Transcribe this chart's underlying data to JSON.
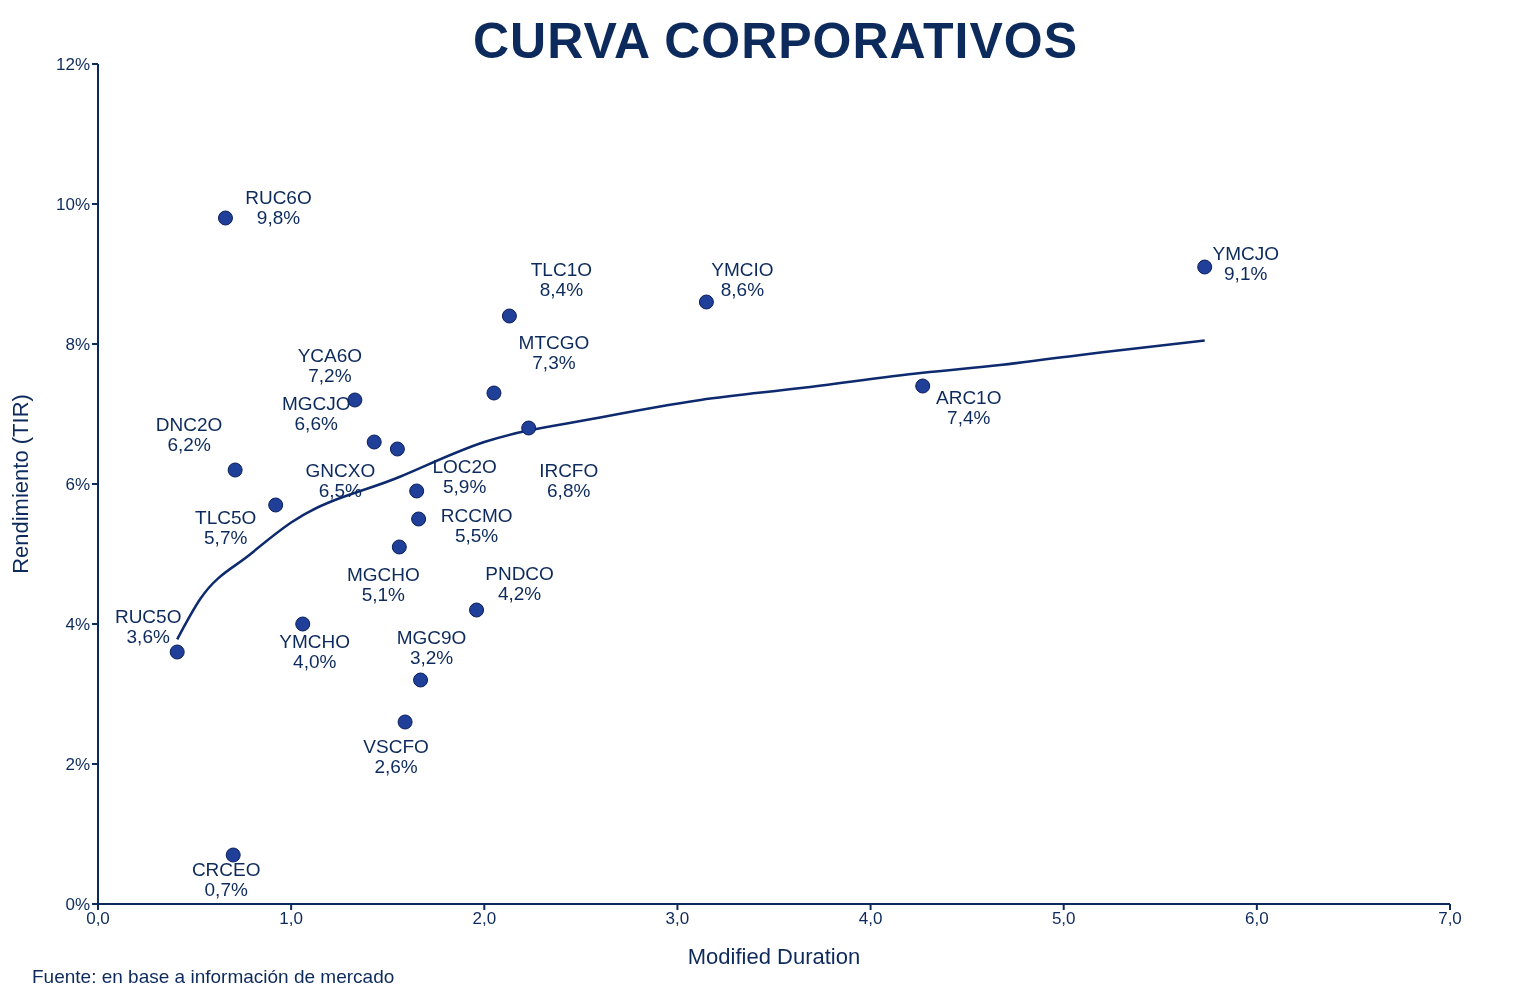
{
  "chart_data": {
    "type": "scatter",
    "title": "CURVA CORPORATIVOS",
    "xlabel": "Modified Duration",
    "ylabel": "Rendimiento (TIR)",
    "xlim": [
      0,
      7
    ],
    "xticks": [
      {
        "value": 0,
        "label": "0,0"
      },
      {
        "value": 1,
        "label": "1,0"
      },
      {
        "value": 2,
        "label": "2,0"
      },
      {
        "value": 3,
        "label": "3,0"
      },
      {
        "value": 4,
        "label": "4,0"
      },
      {
        "value": 5,
        "label": "5,0"
      },
      {
        "value": 6,
        "label": "6,0"
      },
      {
        "value": 7,
        "label": "7,0"
      }
    ],
    "ylim": [
      0,
      12
    ],
    "yticks": [
      {
        "value": 0,
        "label": "0%"
      },
      {
        "value": 2,
        "label": "2%"
      },
      {
        "value": 4,
        "label": "4%"
      },
      {
        "value": 6,
        "label": "6%"
      },
      {
        "value": 8,
        "label": "8%"
      },
      {
        "value": 10,
        "label": "10%"
      },
      {
        "value": 12,
        "label": "12%"
      }
    ],
    "grid": false,
    "legend": false,
    "series": [
      {
        "type": "scatter",
        "marker": "circle",
        "color": "#1f3f99",
        "x": [
          0.66,
          2.13,
          3.15,
          5.73,
          1.33,
          1.43,
          1.55,
          2.05,
          2.23,
          4.27,
          0.71,
          1.65,
          0.92,
          1.66,
          1.56,
          1.96,
          0.41,
          1.06,
          1.67,
          1.59,
          0.7
        ],
        "values": [
          9.8,
          8.4,
          8.6,
          9.1,
          7.2,
          6.6,
          6.5,
          7.3,
          6.8,
          7.4,
          6.2,
          5.9,
          5.7,
          5.5,
          5.1,
          4.2,
          3.6,
          4.0,
          3.2,
          2.6,
          0.7
        ],
        "value_labels": [
          "9,8%",
          "8,4%",
          "8,6%",
          "9,1%",
          "7,2%",
          "6,6%",
          "6,5%",
          "7,3%",
          "6,8%",
          "7,4%",
          "6,2%",
          "5,9%",
          "5,7%",
          "5,5%",
          "5,1%",
          "4,2%",
          "3,6%",
          "4,0%",
          "3,2%",
          "2,6%",
          "0,7%"
        ]
      },
      {
        "type": "line",
        "marker": "none",
        "line_style": "solid",
        "color": "#0d2a6e",
        "x": [
          0.41,
          0.53,
          0.79,
          1.0,
          1.56,
          2.0,
          2.6,
          3.12,
          3.64,
          4.27,
          4.67,
          5.19,
          5.73
        ],
        "values": [
          3.78,
          4.36,
          5.0,
          5.45,
          6.1,
          6.6,
          6.95,
          7.2,
          7.37,
          7.59,
          7.7,
          7.88,
          8.05
        ]
      }
    ],
    "annotations": [
      {
        "text": "RUC6O",
        "x": 0.66,
        "y": 9.8
      },
      {
        "text": "TLC1O",
        "x": 2.13,
        "y": 8.4
      },
      {
        "text": "YMCIO",
        "x": 3.15,
        "y": 8.6
      },
      {
        "text": "YMCJO",
        "x": 5.73,
        "y": 9.1
      },
      {
        "text": "YCA6O",
        "x": 1.33,
        "y": 7.2
      },
      {
        "text": "MGCJO",
        "x": 1.43,
        "y": 6.6
      },
      {
        "text": "GNCXO",
        "x": 1.55,
        "y": 6.5
      },
      {
        "text": "MTCGO",
        "x": 2.05,
        "y": 7.3
      },
      {
        "text": "IRCFO",
        "x": 2.23,
        "y": 6.8
      },
      {
        "text": "ARC1O",
        "x": 4.27,
        "y": 7.4
      },
      {
        "text": "DNC2O",
        "x": 0.71,
        "y": 6.2
      },
      {
        "text": "LOC2O",
        "x": 1.65,
        "y": 5.9
      },
      {
        "text": "TLC5O",
        "x": 0.92,
        "y": 5.7
      },
      {
        "text": "RCCMO",
        "x": 1.66,
        "y": 5.5
      },
      {
        "text": "MGCHO",
        "x": 1.56,
        "y": 5.1
      },
      {
        "text": "PNDCO",
        "x": 1.96,
        "y": 4.2
      },
      {
        "text": "RUC5O",
        "x": 0.41,
        "y": 3.6
      },
      {
        "text": "YMCHO",
        "x": 1.06,
        "y": 4.0
      },
      {
        "text": "MGC9O",
        "x": 1.67,
        "y": 3.2
      },
      {
        "text": "VSCFO",
        "x": 1.59,
        "y": 2.6
      },
      {
        "text": "CRCEO",
        "x": 0.7,
        "y": 0.7
      },
      "Fuente: en base a información de mercado"
    ]
  }
}
